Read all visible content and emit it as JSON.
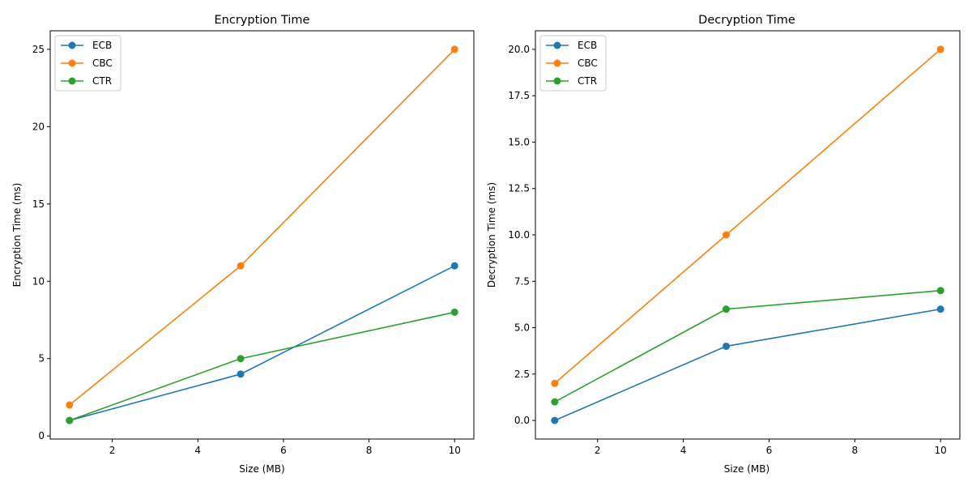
{
  "chart_data": [
    {
      "type": "line",
      "title": "Encryption Time",
      "xlabel": "Size (MB)",
      "ylabel": "Encryption Time (ms)",
      "x": [
        1,
        5,
        10
      ],
      "xlim": [
        0.55,
        10.45
      ],
      "ylim": [
        -0.2,
        26.2
      ],
      "xticks": [
        2,
        4,
        6,
        8,
        10
      ],
      "yticks": [
        0,
        5,
        10,
        15,
        20,
        25
      ],
      "ytick_labels": [
        "0",
        "5",
        "10",
        "15",
        "20",
        "25"
      ],
      "legend_position": "upper-left",
      "grid": false,
      "series": [
        {
          "name": "ECB",
          "color": "#1f77b4",
          "values": [
            1,
            4,
            11
          ]
        },
        {
          "name": "CBC",
          "color": "#ff7f0e",
          "values": [
            2,
            11,
            25
          ]
        },
        {
          "name": "CTR",
          "color": "#2ca02c",
          "values": [
            1,
            5,
            8
          ]
        }
      ]
    },
    {
      "type": "line",
      "title": "Decryption Time",
      "xlabel": "Size (MB)",
      "ylabel": "Decryption Time (ms)",
      "x": [
        1,
        5,
        10
      ],
      "xlim": [
        0.55,
        10.45
      ],
      "ylim": [
        -1.0,
        21.0
      ],
      "xticks": [
        2,
        4,
        6,
        8,
        10
      ],
      "yticks": [
        0,
        2.5,
        5,
        7.5,
        10,
        12.5,
        15,
        17.5,
        20
      ],
      "ytick_labels": [
        "0.0",
        "2.5",
        "5.0",
        "7.5",
        "10.0",
        "12.5",
        "15.0",
        "17.5",
        "20.0"
      ],
      "legend_position": "upper-left",
      "grid": false,
      "series": [
        {
          "name": "ECB",
          "color": "#1f77b4",
          "values": [
            0,
            4,
            6
          ]
        },
        {
          "name": "CBC",
          "color": "#ff7f0e",
          "values": [
            2,
            10,
            20
          ]
        },
        {
          "name": "CTR",
          "color": "#2ca02c",
          "values": [
            1,
            6,
            7
          ]
        }
      ]
    }
  ]
}
